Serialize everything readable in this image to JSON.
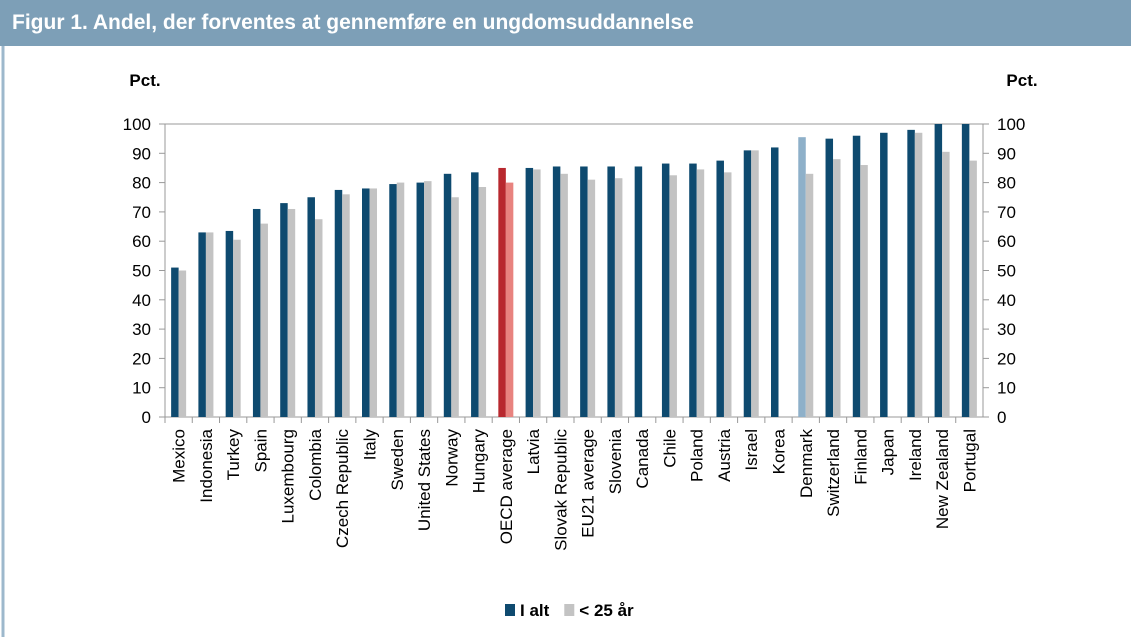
{
  "chart_data": {
    "type": "bar",
    "title": "Figur 1. Andel, der forventes at gennemføre en ungdomsuddannelse",
    "y_label": "Pct.",
    "y2_label": "Pct.",
    "categories": [
      "Mexico",
      "Indonesia",
      "Turkey",
      "Spain",
      "Luxembourg",
      "Colombia",
      "Czech Republic",
      "Italy",
      "Sweden",
      "United States",
      "Norway",
      "Hungary",
      "OECD average",
      "Latvia",
      "Slovak Republic",
      "EU21 average",
      "Slovenia",
      "Canada",
      "Chile",
      "Poland",
      "Austria",
      "Israel",
      "Korea",
      "Denmark",
      "Switzerland",
      "Finland",
      "Japan",
      "Ireland",
      "New Zealand",
      "Portugal"
    ],
    "series": [
      {
        "name": "I alt",
        "color": "#0e4a6f",
        "point_colors": {
          "12": "#b8282e",
          "23": "#8eb0c9"
        },
        "values": [
          51,
          63,
          63.5,
          71,
          73,
          75,
          77.5,
          78,
          79.5,
          80,
          83,
          83.5,
          85,
          85,
          85.5,
          85.5,
          85.5,
          85.5,
          86.5,
          86.5,
          87.5,
          91,
          92,
          95.5,
          95,
          96,
          97,
          98,
          100,
          100
        ]
      },
      {
        "name": "< 25 år",
        "color": "#c3c3c3",
        "point_colors": {
          "12": "#e8837f"
        },
        "values": [
          50,
          63,
          60.5,
          66,
          71,
          67.5,
          76,
          78,
          80,
          80.5,
          75,
          78.5,
          80,
          84.5,
          83,
          81,
          81.5,
          null,
          82.5,
          84.5,
          83.5,
          91,
          null,
          83,
          88,
          86,
          null,
          97,
          90.5,
          87.5
        ]
      }
    ],
    "ylim": [
      0,
      100
    ],
    "yticks": [
      0,
      10,
      20,
      30,
      40,
      50,
      60,
      70,
      80,
      90,
      100
    ],
    "y2lim": [
      0,
      100
    ],
    "y2ticks": [
      0,
      10,
      20,
      30,
      40,
      50,
      60,
      70,
      80,
      90,
      100
    ],
    "legend": "bottom"
  }
}
